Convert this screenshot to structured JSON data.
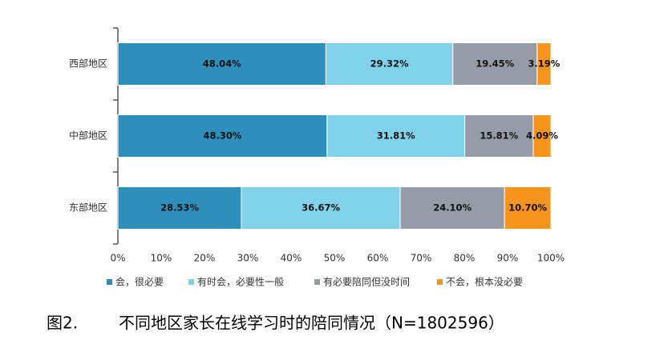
{
  "chart_data": {
    "type": "stacked_bar_horizontal",
    "figure_number": "图2.",
    "title": "不同地区家长在线学习时的陪同情况（N=1802596）",
    "categories": [
      "西部地区",
      "中部地区",
      "东部地区"
    ],
    "series": [
      {
        "name": "会，很必要",
        "color": "#2e8fbd",
        "values": [
          48.04,
          48.3,
          28.53
        ],
        "value_labels": [
          "48.04%",
          "48.30%",
          "28.53%"
        ]
      },
      {
        "name": "有时会，必要性一般",
        "color": "#80d2ea",
        "values": [
          29.32,
          31.81,
          36.67
        ],
        "value_labels": [
          "29.32%",
          "31.81%",
          "36.67%"
        ]
      },
      {
        "name": "有必要陪同但没时间",
        "color": "#969ca7",
        "values": [
          19.45,
          15.81,
          24.1
        ],
        "value_labels": [
          "19.45%",
          "15.81%",
          "24.10%"
        ]
      },
      {
        "name": "不会，根本没必要",
        "color": "#f7941d",
        "values": [
          3.19,
          4.09,
          10.7
        ],
        "value_labels": [
          "3.19%",
          "4.09%",
          "10.70%"
        ]
      }
    ],
    "xlim": [
      0,
      100
    ],
    "xticks": [
      {
        "value": 0,
        "label": "0%"
      },
      {
        "value": 10,
        "label": "10%"
      },
      {
        "value": 20,
        "label": "20%"
      },
      {
        "value": 30,
        "label": "30%"
      },
      {
        "value": 40,
        "label": "40%"
      },
      {
        "value": 50,
        "label": "50%"
      },
      {
        "value": 60,
        "label": "60%"
      },
      {
        "value": 70,
        "label": "70%"
      },
      {
        "value": 80,
        "label": "80%"
      },
      {
        "value": 90,
        "label": "90%"
      },
      {
        "value": 100,
        "label": "100%"
      }
    ],
    "legend": "bottom"
  }
}
